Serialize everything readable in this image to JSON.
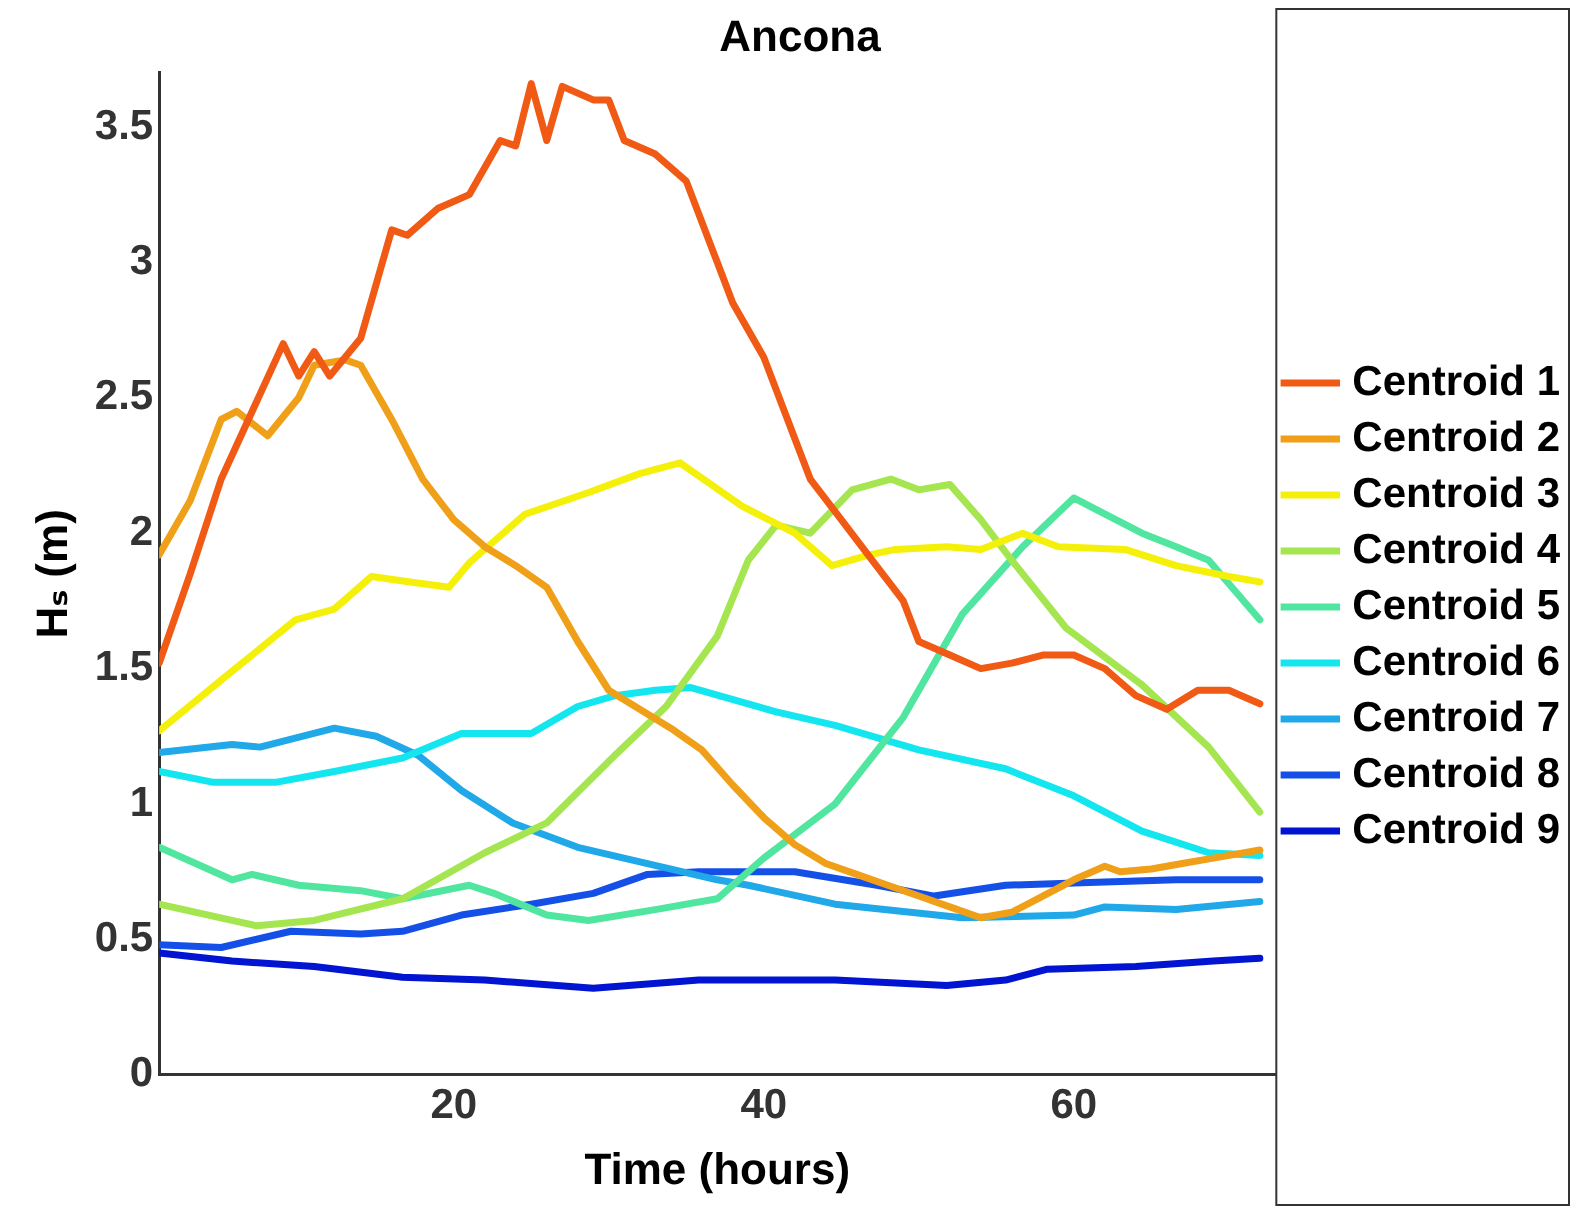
{
  "chart_data": {
    "type": "line",
    "title": "Ancona",
    "xlabel": "Time (hours)",
    "ylabel": "Hₛ (m)",
    "xlim": [
      1,
      73
    ],
    "xticks": [
      20,
      40,
      60
    ],
    "ylim": [
      0,
      3.7
    ],
    "yticks": [
      0,
      0.5,
      1,
      1.5,
      2,
      2.5,
      3,
      3.5
    ],
    "legend": "right",
    "line_style": "solid",
    "series": [
      {
        "name": "Centroid 1",
        "color": "#f05a14",
        "x": [
          1,
          3,
          5,
          7,
          9,
          10,
          11,
          12,
          14,
          16,
          17,
          19,
          21,
          23,
          24,
          25,
          26,
          27,
          29,
          30,
          31,
          33,
          35,
          37,
          38,
          40,
          42,
          43,
          45,
          47,
          49,
          50,
          52,
          54,
          56,
          58,
          60,
          62,
          64,
          66,
          68,
          70,
          72
        ],
        "values": [
          1.52,
          1.85,
          2.2,
          2.45,
          2.7,
          2.58,
          2.67,
          2.58,
          2.72,
          3.12,
          3.1,
          3.2,
          3.25,
          3.45,
          3.43,
          3.66,
          3.45,
          3.65,
          3.6,
          3.6,
          3.45,
          3.4,
          3.3,
          3.0,
          2.85,
          2.65,
          2.35,
          2.2,
          2.05,
          1.9,
          1.75,
          1.6,
          1.55,
          1.5,
          1.52,
          1.55,
          1.55,
          1.5,
          1.4,
          1.35,
          1.42,
          1.42,
          1.37
        ]
      },
      {
        "name": "Centroid 2",
        "color": "#f0a018",
        "x": [
          1,
          3,
          5,
          6,
          8,
          10,
          11,
          13,
          14,
          16,
          18,
          20,
          22,
          24,
          26,
          28,
          30,
          32,
          34,
          36,
          38,
          40,
          42,
          44,
          46,
          48,
          50,
          52,
          54,
          56,
          58,
          60,
          62,
          63,
          65,
          67,
          69,
          72
        ],
        "values": [
          1.92,
          2.12,
          2.42,
          2.45,
          2.36,
          2.5,
          2.62,
          2.64,
          2.62,
          2.42,
          2.2,
          2.05,
          1.95,
          1.88,
          1.8,
          1.6,
          1.42,
          1.35,
          1.28,
          1.2,
          1.07,
          0.95,
          0.85,
          0.78,
          0.74,
          0.7,
          0.66,
          0.62,
          0.58,
          0.6,
          0.66,
          0.72,
          0.77,
          0.75,
          0.76,
          0.78,
          0.8,
          0.83
        ]
      },
      {
        "name": "Centroid 3",
        "color": "#f5f00a",
        "x": [
          1,
          5.7,
          9.8,
          12.3,
          14.7,
          17.2,
          19.7,
          21,
          23,
          24.6,
          28.7,
          32,
          34.6,
          38.6,
          42,
          44.4,
          46.8,
          48.5,
          51.8,
          54,
          56.7,
          59,
          63.3,
          66.6,
          70,
          72
        ],
        "values": [
          1.27,
          1.49,
          1.68,
          1.72,
          1.84,
          1.82,
          1.8,
          1.89,
          1.99,
          2.07,
          2.15,
          2.22,
          2.26,
          2.1,
          2.0,
          1.88,
          1.92,
          1.94,
          1.95,
          1.94,
          2.0,
          1.95,
          1.94,
          1.88,
          1.84,
          1.82
        ]
      },
      {
        "name": "Centroid 4",
        "color": "#a5e650",
        "x": [
          1,
          5.7,
          7.3,
          11,
          16.7,
          22,
          26,
          30.4,
          33.7,
          37,
          39,
          40.8,
          43,
          45.7,
          48.2,
          50,
          52,
          54,
          56,
          59.5,
          64.4,
          68.7,
          72
        ],
        "values": [
          0.63,
          0.57,
          0.55,
          0.57,
          0.65,
          0.82,
          0.93,
          1.18,
          1.36,
          1.62,
          1.9,
          2.03,
          2.0,
          2.16,
          2.2,
          2.16,
          2.18,
          2.05,
          1.9,
          1.65,
          1.44,
          1.21,
          0.97
        ]
      },
      {
        "name": "Centroid 5",
        "color": "#50e6a0",
        "x": [
          1,
          5.7,
          7,
          10,
          14,
          16.7,
          21,
          22.6,
          26,
          28.7,
          33,
          37,
          40,
          44.6,
          49,
          52.8,
          56.7,
          60,
          64.4,
          66.6,
          68.7,
          72
        ],
        "values": [
          0.84,
          0.72,
          0.74,
          0.7,
          0.68,
          0.65,
          0.7,
          0.67,
          0.59,
          0.57,
          0.61,
          0.65,
          0.8,
          1.0,
          1.32,
          1.7,
          1.95,
          2.13,
          2.0,
          1.95,
          1.9,
          1.68
        ]
      },
      {
        "name": "Centroid 6",
        "color": "#14e6f0",
        "x": [
          1,
          4.5,
          8.5,
          12.3,
          16.7,
          20.5,
          25,
          28,
          30.4,
          33,
          35.3,
          40.8,
          44.6,
          50,
          55.6,
          60,
          64.4,
          68.7,
          72
        ],
        "values": [
          1.12,
          1.08,
          1.08,
          1.12,
          1.17,
          1.26,
          1.26,
          1.36,
          1.4,
          1.42,
          1.43,
          1.34,
          1.29,
          1.2,
          1.13,
          1.03,
          0.9,
          0.82,
          0.81
        ]
      },
      {
        "name": "Centroid 7",
        "color": "#20a8e8",
        "x": [
          1,
          5.7,
          7.5,
          12.3,
          15,
          17.7,
          20.5,
          23.8,
          28,
          32.5,
          37,
          39,
          44.6,
          52.8,
          60,
          62,
          66.6,
          72
        ],
        "values": [
          1.19,
          1.22,
          1.21,
          1.28,
          1.25,
          1.18,
          1.05,
          0.93,
          0.84,
          0.78,
          0.72,
          0.7,
          0.63,
          0.58,
          0.59,
          0.62,
          0.61,
          0.64
        ]
      },
      {
        "name": "Centroid 8",
        "color": "#1450e8",
        "x": [
          1,
          5,
          9.5,
          14,
          16.7,
          20.5,
          25,
          29,
          32.5,
          35.8,
          42,
          47.3,
          51,
          55.6,
          61,
          66.6,
          72
        ],
        "values": [
          0.48,
          0.47,
          0.53,
          0.52,
          0.53,
          0.59,
          0.63,
          0.67,
          0.74,
          0.75,
          0.75,
          0.7,
          0.66,
          0.7,
          0.71,
          0.72,
          0.72
        ]
      },
      {
        "name": "Centroid 9",
        "color": "#0014d2",
        "x": [
          1,
          5.7,
          11,
          16.7,
          22,
          29,
          35.8,
          39,
          44.6,
          51.8,
          55.6,
          58.3,
          64,
          69,
          72
        ],
        "values": [
          0.45,
          0.42,
          0.4,
          0.36,
          0.35,
          0.32,
          0.35,
          0.35,
          0.35,
          0.33,
          0.35,
          0.39,
          0.4,
          0.42,
          0.43
        ]
      }
    ]
  }
}
